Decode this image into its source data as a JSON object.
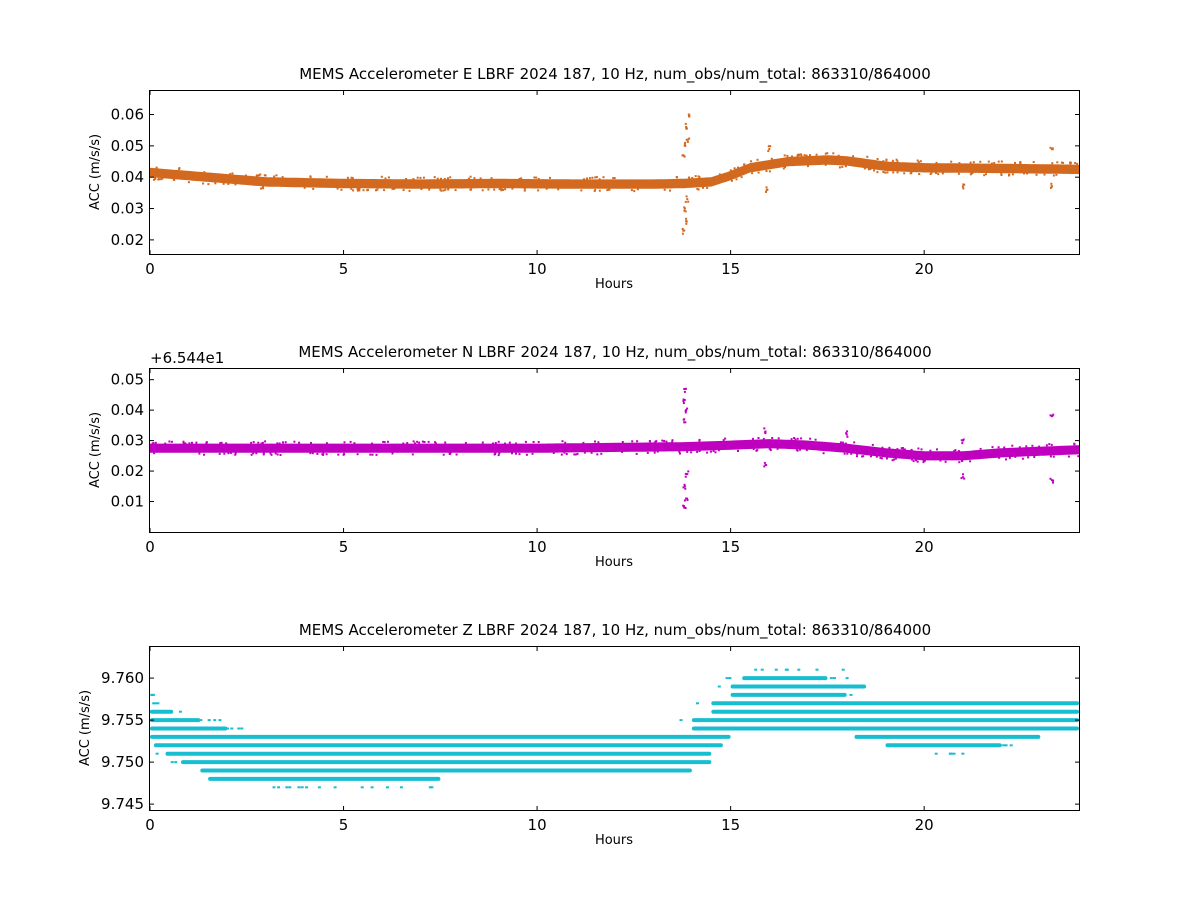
{
  "chart_data": [
    {
      "type": "scatter",
      "title": "MEMS Accelerometer E LBRF 2024 187, 10 Hz, num_obs/num_total: 863310/864000",
      "xlabel": "Hours",
      "ylabel": "ACC (m/s/s)",
      "offset_text": "",
      "xlim": [
        0,
        24
      ],
      "ylim": [
        0.0155,
        0.0675
      ],
      "xticks": [
        0,
        5,
        10,
        15,
        20
      ],
      "xtick_labels": [
        "0",
        "5",
        "10",
        "15",
        "20"
      ],
      "yticks": [
        0.02,
        0.03,
        0.04,
        0.05,
        0.06
      ],
      "ytick_labels": [
        "0.02",
        "0.03",
        "0.04",
        "0.05",
        "0.06"
      ],
      "color": "#d2691e",
      "grid": false,
      "band_center": [
        [
          0,
          0.0415
        ],
        [
          1,
          0.0405
        ],
        [
          2,
          0.0395
        ],
        [
          3,
          0.0385
        ],
        [
          5,
          0.038
        ],
        [
          7,
          0.0378
        ],
        [
          9,
          0.038
        ],
        [
          11,
          0.0378
        ],
        [
          13,
          0.0378
        ],
        [
          13.8,
          0.038
        ],
        [
          14.5,
          0.0385
        ],
        [
          15,
          0.0405
        ],
        [
          15.5,
          0.043
        ],
        [
          16.5,
          0.045
        ],
        [
          17.5,
          0.0455
        ],
        [
          18,
          0.0452
        ],
        [
          19,
          0.0435
        ],
        [
          20,
          0.043
        ],
        [
          22,
          0.0428
        ],
        [
          24,
          0.0425
        ]
      ],
      "band_halfwidth": 0.0015,
      "outliers": [
        [
          13.8,
          0.023
        ],
        [
          13.85,
          0.026
        ],
        [
          13.82,
          0.03
        ],
        [
          13.88,
          0.033
        ],
        [
          13.78,
          0.047
        ],
        [
          13.83,
          0.05
        ],
        [
          13.9,
          0.052
        ],
        [
          13.85,
          0.056
        ],
        [
          13.92,
          0.06
        ],
        [
          15.95,
          0.036
        ],
        [
          16.0,
          0.049
        ],
        [
          21.0,
          0.037
        ],
        [
          23.3,
          0.049
        ],
        [
          23.3,
          0.037
        ]
      ]
    },
    {
      "type": "scatter",
      "title": "MEMS Accelerometer N LBRF 2024 187, 10 Hz, num_obs/num_total: 863310/864000",
      "xlabel": "Hours",
      "ylabel": "ACC (m/s/s)",
      "offset_text": "+6.544e1",
      "xlim": [
        0,
        24
      ],
      "ylim": [
        0.0,
        0.0535
      ],
      "xticks": [
        0,
        5,
        10,
        15,
        20
      ],
      "xtick_labels": [
        "0",
        "5",
        "10",
        "15",
        "20"
      ],
      "yticks": [
        0.01,
        0.02,
        0.03,
        0.04,
        0.05
      ],
      "ytick_labels": [
        "0.01",
        "0.02",
        "0.03",
        "0.04",
        "0.05"
      ],
      "color": "#bf00bf",
      "grid": false,
      "band_center": [
        [
          0,
          0.0275
        ],
        [
          5,
          0.0275
        ],
        [
          10,
          0.0275
        ],
        [
          13.8,
          0.028
        ],
        [
          15,
          0.0285
        ],
        [
          16,
          0.029
        ],
        [
          17,
          0.0285
        ],
        [
          18,
          0.0275
        ],
        [
          19,
          0.026
        ],
        [
          20,
          0.025
        ],
        [
          21,
          0.025
        ],
        [
          22,
          0.026
        ],
        [
          24,
          0.027
        ]
      ],
      "band_halfwidth": 0.0015,
      "outliers": [
        [
          13.8,
          0.008
        ],
        [
          13.85,
          0.011
        ],
        [
          13.82,
          0.015
        ],
        [
          13.88,
          0.019
        ],
        [
          13.8,
          0.037
        ],
        [
          13.85,
          0.04
        ],
        [
          13.78,
          0.043
        ],
        [
          13.82,
          0.046
        ],
        [
          15.9,
          0.033
        ],
        [
          15.9,
          0.022
        ],
        [
          18.0,
          0.032
        ],
        [
          21.0,
          0.018
        ],
        [
          21.0,
          0.03
        ],
        [
          23.3,
          0.017
        ],
        [
          23.3,
          0.038
        ]
      ]
    },
    {
      "type": "scatter",
      "title": "MEMS Accelerometer Z LBRF 2024 187, 10 Hz, num_obs/num_total: 863310/864000",
      "xlabel": "Hours",
      "ylabel": "ACC (m/s/s)",
      "offset_text": "",
      "xlim": [
        0,
        24
      ],
      "ylim": [
        9.7443,
        9.7637
      ],
      "xticks": [
        0,
        5,
        10,
        15,
        20
      ],
      "xtick_labels": [
        "0",
        "5",
        "10",
        "15",
        "20"
      ],
      "yticks": [
        9.745,
        9.75,
        9.755,
        9.76
      ],
      "ytick_labels": [
        "9.745",
        "9.750",
        "9.755",
        "9.760"
      ],
      "color": "#17becf",
      "grid": false,
      "quantized_levels": [
        {
          "y": 9.761,
          "x0": 15.5,
          "x1": 18.0,
          "dense": false
        },
        {
          "y": 9.76,
          "x0": 15.3,
          "x1": 17.5,
          "dense": true
        },
        {
          "y": 9.759,
          "x0": 15.0,
          "x1": 18.5,
          "dense": true
        },
        {
          "y": 9.758,
          "x0": 0.0,
          "x1": 0.1,
          "dense": false
        },
        {
          "y": 9.758,
          "x0": 15.0,
          "x1": 18.0,
          "dense": true
        },
        {
          "y": 9.757,
          "x0": 0.0,
          "x1": 0.3,
          "dense": false
        },
        {
          "y": 9.757,
          "x0": 14.5,
          "x1": 24.0,
          "dense": true
        },
        {
          "y": 9.756,
          "x0": 0.0,
          "x1": 0.6,
          "dense": true
        },
        {
          "y": 9.756,
          "x0": 14.5,
          "x1": 24.0,
          "dense": true
        },
        {
          "y": 9.755,
          "x0": 0.0,
          "x1": 1.3,
          "dense": true
        },
        {
          "y": 9.755,
          "x0": 14.0,
          "x1": 24.0,
          "dense": true
        },
        {
          "y": 9.754,
          "x0": 0.0,
          "x1": 2.0,
          "dense": true
        },
        {
          "y": 9.754,
          "x0": 14.0,
          "x1": 24.0,
          "dense": true
        },
        {
          "y": 9.753,
          "x0": 0.0,
          "x1": 15.0,
          "dense": true
        },
        {
          "y": 9.753,
          "x0": 18.2,
          "x1": 23.0,
          "dense": true
        },
        {
          "y": 9.752,
          "x0": 0.1,
          "x1": 14.8,
          "dense": true
        },
        {
          "y": 9.752,
          "x0": 19.0,
          "x1": 22.0,
          "dense": true
        },
        {
          "y": 9.751,
          "x0": 0.4,
          "x1": 14.5,
          "dense": true
        },
        {
          "y": 9.751,
          "x0": 19.5,
          "x1": 21.0,
          "dense": false
        },
        {
          "y": 9.75,
          "x0": 0.8,
          "x1": 14.5,
          "dense": true
        },
        {
          "y": 9.749,
          "x0": 1.3,
          "x1": 14.0,
          "dense": true
        },
        {
          "y": 9.748,
          "x0": 1.5,
          "x1": 7.5,
          "dense": true
        },
        {
          "y": 9.747,
          "x0": 2.8,
          "x1": 7.3,
          "dense": false
        }
      ]
    }
  ]
}
